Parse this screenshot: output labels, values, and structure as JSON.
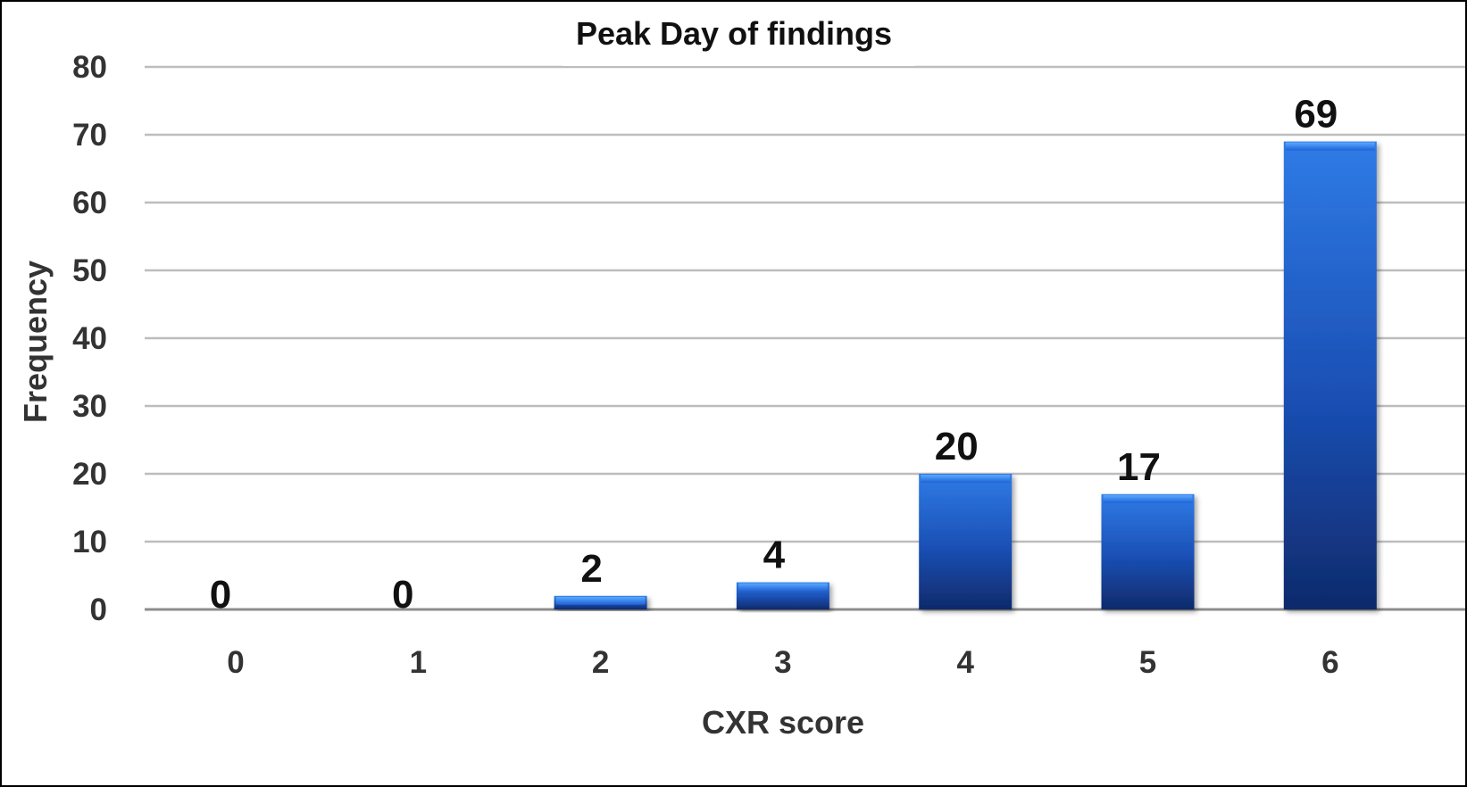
{
  "chart_data": {
    "type": "bar",
    "title": "Peak Day of findings",
    "xlabel": "CXR score",
    "ylabel": "Frequency",
    "categories": [
      "0",
      "1",
      "2",
      "3",
      "4",
      "5",
      "6"
    ],
    "values": [
      0,
      0,
      2,
      4,
      20,
      17,
      69
    ],
    "data_labels": [
      "0",
      "0",
      "2",
      "4",
      "20",
      "17",
      "69"
    ],
    "ylim": [
      0,
      80
    ],
    "yticks": [
      0,
      10,
      20,
      30,
      40,
      50,
      60,
      70,
      80
    ],
    "grid": true,
    "legend": "none",
    "bar_color": "#1f5fd0",
    "bar_color_dark": "#0f2a6b"
  }
}
